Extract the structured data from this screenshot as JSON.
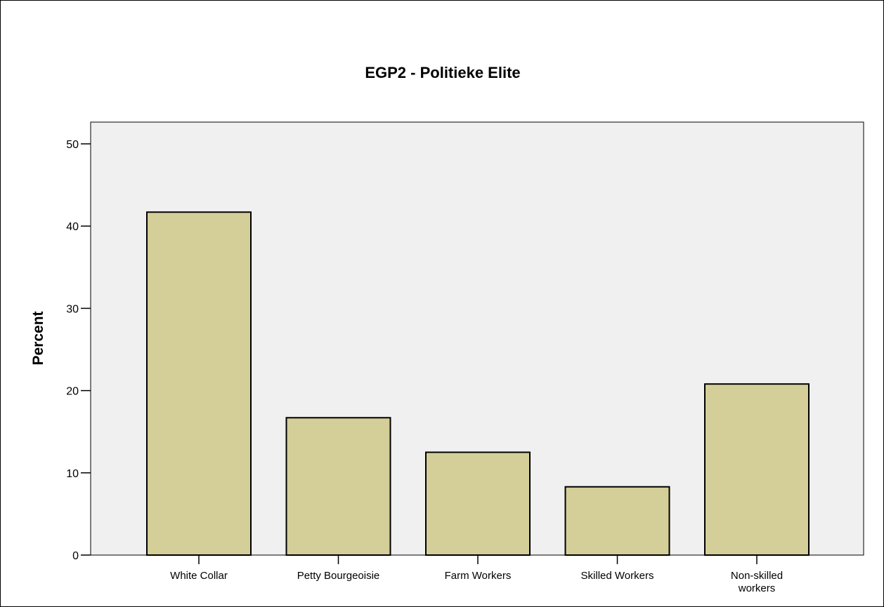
{
  "chart_data": {
    "type": "bar",
    "title": "EGP2 - Politieke Elite",
    "xlabel": "",
    "ylabel": "Percent",
    "categories": [
      "White Collar",
      "Petty Bourgeoisie",
      "Farm Workers",
      "Skilled Workers",
      "Non-skilled workers"
    ],
    "category_lines": [
      [
        "White Collar"
      ],
      [
        "Petty Bourgeoisie"
      ],
      [
        "Farm Workers"
      ],
      [
        "Skilled Workers"
      ],
      [
        "Non-skilled",
        "workers"
      ]
    ],
    "values": [
      41.7,
      16.7,
      12.5,
      8.3,
      20.8
    ],
    "ylim": [
      0,
      52
    ],
    "yticks": [
      0,
      10,
      20,
      30,
      40,
      50
    ],
    "grid": false,
    "legend": "none",
    "colors": {
      "bar_fill": "#d4ce98",
      "bar_stroke": "#000000",
      "plot_background": "#f0f0f0",
      "axis": "#000000"
    }
  }
}
